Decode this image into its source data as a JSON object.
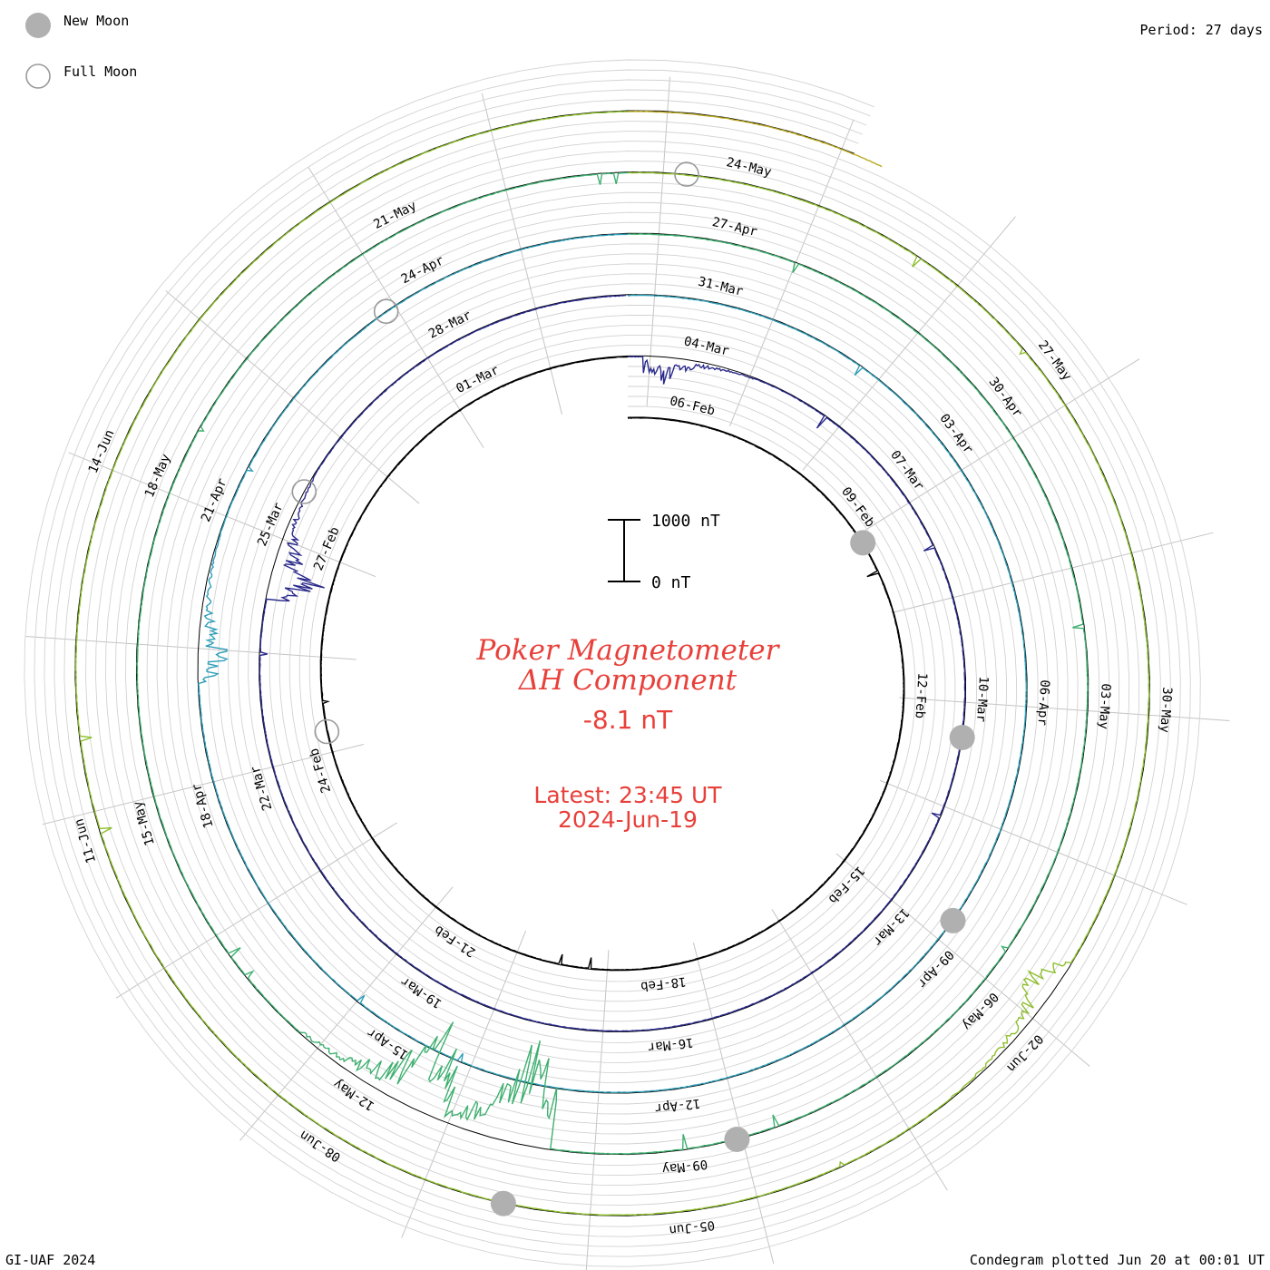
{
  "chart_data": {
    "type": "line",
    "subtype": "condegram-spiral",
    "title_line1": "Poker Magnetometer",
    "title_line2": "ΔH Component",
    "current_value": "-8.1 nT",
    "latest_line1": "Latest: 23:45 UT",
    "latest_line2": "2024-Jun-19",
    "period_label": "Period: 27 days",
    "scale_bar": {
      "top_label": "1000 nT",
      "bottom_label": "0 nT"
    },
    "legend": [
      {
        "label": "New Moon",
        "style": "filled",
        "color": "#b0b0b0"
      },
      {
        "label": "Full Moon",
        "style": "open",
        "color": "#9a9a9a"
      }
    ],
    "footer_left": "GI-UAF 2024",
    "footer_right": "Condegram plotted Jun 20 at 00:01 UT",
    "date_labels": [
      "06-Feb",
      "09-Feb",
      "12-Feb",
      "15-Feb",
      "18-Feb",
      "21-Feb",
      "24-Feb",
      "27-Feb",
      "01-Mar",
      "04-Mar",
      "07-Mar",
      "10-Mar",
      "13-Mar",
      "16-Mar",
      "19-Mar",
      "22-Mar",
      "25-Mar",
      "28-Mar",
      "31-Mar",
      "03-Apr",
      "06-Apr",
      "09-Apr",
      "12-Apr",
      "15-Apr",
      "18-Apr",
      "21-Apr",
      "24-Apr",
      "27-Apr",
      "30-Apr",
      "03-May",
      "06-May",
      "09-May",
      "12-May",
      "15-May",
      "18-May",
      "21-May",
      "24-May",
      "27-May",
      "30-May",
      "02-Jun",
      "05-Jun",
      "08-Jun",
      "11-Jun",
      "14-Jun"
    ],
    "moon_phases": [
      {
        "phase": "new",
        "date": "2024-02-09"
      },
      {
        "phase": "full",
        "date": "2024-02-24"
      },
      {
        "phase": "new",
        "date": "2024-03-10"
      },
      {
        "phase": "full",
        "date": "2024-03-25"
      },
      {
        "phase": "new",
        "date": "2024-04-08"
      },
      {
        "phase": "full",
        "date": "2024-04-23"
      },
      {
        "phase": "new",
        "date": "2024-05-08"
      },
      {
        "phase": "full",
        "date": "2024-05-23"
      },
      {
        "phase": "new",
        "date": "2024-06-06"
      }
    ],
    "x_range": [
      "2024-02-05",
      "2024-06-19"
    ],
    "y_units": "nT",
    "grid": true,
    "series_colors": [
      "#000000",
      "#2a2a8c",
      "#2f9fb8",
      "#3fb070",
      "#8fbf2f",
      "#b8a820",
      "#c0701c",
      "#b0201c"
    ],
    "storm_events": [
      {
        "date": "2024-03-03",
        "peak_nT": 350
      },
      {
        "date": "2024-03-24",
        "peak_nT": 700
      },
      {
        "date": "2024-04-19",
        "peak_nT": 450
      },
      {
        "date": "2024-05-10",
        "peak_nT": 1700
      },
      {
        "date": "2024-05-11",
        "peak_nT": 1400
      },
      {
        "date": "2024-06-01",
        "peak_nT": 450
      }
    ]
  }
}
